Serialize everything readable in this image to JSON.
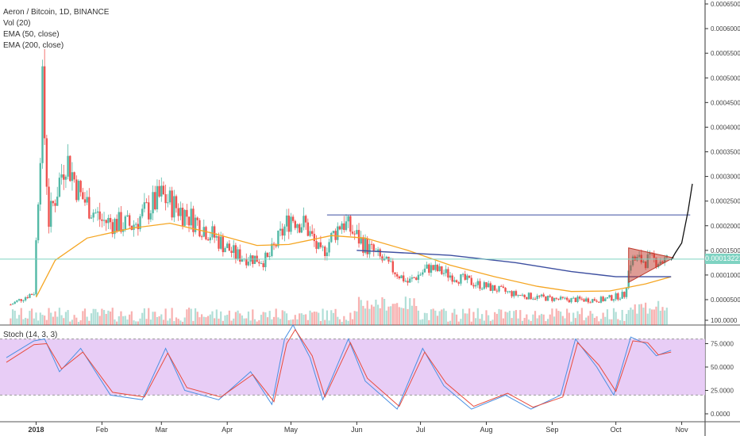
{
  "legend": {
    "symbol": "Aeron / Bitcoin, 1D, BINANCE",
    "vol": "Vol (20)",
    "ema50": "EMA (50, close)",
    "ema200": "EMA (200, close)",
    "stoch": "Stoch (14, 3, 3)"
  },
  "last_price_label": "0.00013221",
  "colors": {
    "up": "#53b9a6",
    "down": "#ef5350",
    "ema50": "#f5a623",
    "ema200": "#3d4fa0",
    "stoch_k": "#4a90e2",
    "stoch_d": "#e94b3c",
    "stoch_band": "#e6c8f5",
    "triangle": "#c0392b",
    "resistance": "#3d4fa0",
    "projection": "#111111"
  },
  "chart_data": [
    {
      "type": "line",
      "title": "Aeron / Bitcoin, 1D, BINANCE",
      "ylim": [
        0,
        0.00066
      ],
      "y_ticks": [
        "0.00065000",
        "0.00060000",
        "0.00055000",
        "0.00050000",
        "0.00045000",
        "0.00040000",
        "0.00035000",
        "0.00030000",
        "0.00025000",
        "0.00020000",
        "0.00015000",
        "0.00010000",
        "0.00005000"
      ],
      "x_ticks": [
        "2018",
        "Feb",
        "Mar",
        "Apr",
        "May",
        "Jun",
        "Jul",
        "Aug",
        "Sep",
        "Oct",
        "Nov"
      ],
      "x_range": [
        "2017-12-15",
        "2018-11-12"
      ],
      "series": [
        {
          "name": "EMA (50, close)",
          "points": [
            [
              "2018-01-01",
              5.5e-05
            ],
            [
              "2018-01-10",
              0.00013
            ],
            [
              "2018-01-25",
              0.000175
            ],
            [
              "2018-02-15",
              0.000195
            ],
            [
              "2018-03-05",
              0.000205
            ],
            [
              "2018-03-25",
              0.000185
            ],
            [
              "2018-04-15",
              0.00016
            ],
            [
              "2018-04-30",
              0.000162
            ],
            [
              "2018-05-20",
              0.00018
            ],
            [
              "2018-06-05",
              0.000175
            ],
            [
              "2018-06-25",
              0.00015
            ],
            [
              "2018-07-15",
              0.00012
            ],
            [
              "2018-08-05",
              9.65e-05
            ],
            [
              "2018-08-25",
              7.7e-05
            ],
            [
              "2018-09-10",
              6.65e-05
            ],
            [
              "2018-09-28",
              6.75e-05
            ],
            [
              "2018-10-15",
              8.2e-05
            ],
            [
              "2018-10-27",
              9.65e-05
            ]
          ]
        },
        {
          "name": "EMA (200, close)",
          "points": [
            [
              "2018-06-01",
              0.00015
            ],
            [
              "2018-07-15",
              0.00014
            ],
            [
              "2018-08-15",
              0.000125
            ],
            [
              "2018-09-10",
              0.000107
            ],
            [
              "2018-10-01",
              9.65e-05
            ],
            [
              "2018-10-27",
              9.65e-05
            ]
          ]
        }
      ],
      "candles_summary": [
        [
          "2017-12-20",
          4e-05
        ],
        [
          "2017-12-31",
          6.5e-05
        ],
        [
          "2018-01-04",
          0.00047
        ],
        [
          "2018-01-07",
          0.00021
        ],
        [
          "2018-01-15",
          0.00034
        ],
        [
          "2018-01-22",
          0.00026
        ],
        [
          "2018-02-01",
          0.00021
        ],
        [
          "2018-02-15",
          0.0002
        ],
        [
          "2018-03-01",
          0.00026
        ],
        [
          "2018-03-20",
          0.0002
        ],
        [
          "2018-04-05",
          0.00014
        ],
        [
          "2018-04-20",
          0.00013
        ],
        [
          "2018-05-01",
          0.00022
        ],
        [
          "2018-05-08",
          0.0002
        ],
        [
          "2018-05-15",
          0.00014
        ],
        [
          "2018-05-25",
          0.00021
        ],
        [
          "2018-06-05",
          0.00016
        ],
        [
          "2018-06-25",
          8.5e-05
        ],
        [
          "2018-07-05",
          0.000115
        ],
        [
          "2018-07-25",
          8.5e-05
        ],
        [
          "2018-08-15",
          6e-05
        ],
        [
          "2018-09-05",
          5e-05
        ],
        [
          "2018-09-25",
          5e-05
        ],
        [
          "2018-10-05",
          6e-05
        ],
        [
          "2018-10-08",
          0.00013
        ],
        [
          "2018-10-25",
          0.00013
        ]
      ],
      "annotations": {
        "resistance_level": 0.000222,
        "resistance_from": "2018-05-18",
        "resistance_to": "2018-11-05",
        "triangle": [
          [
            "2018-10-07",
            0.000155
          ],
          [
            "2018-10-28",
            0.000135
          ],
          [
            "2018-10-07",
            8.5e-05
          ]
        ],
        "projection": [
          [
            "2018-10-27",
            0.00013
          ],
          [
            "2018-10-29",
            0.000145
          ],
          [
            "2018-11-01",
            0.000165
          ],
          [
            "2018-11-04",
            0.00023
          ],
          [
            "2018-11-06",
            0.000285
          ]
        ],
        "last_price": 0.00013221
      }
    },
    {
      "type": "line",
      "title": "Stoch (14, 3, 3)",
      "ylim": [
        -5,
        105
      ],
      "y_ticks": [
        "100.0000",
        "75.0000",
        "50.0000",
        "25.0000",
        "0.0000"
      ],
      "band": [
        20,
        80
      ],
      "series": [
        {
          "name": "%K",
          "points": [
            [
              "2017-12-18",
              60
            ],
            [
              "2017-12-31",
              78
            ],
            [
              "2018-01-05",
              80
            ],
            [
              "2018-01-12",
              45
            ],
            [
              "2018-01-22",
              70
            ],
            [
              "2018-02-05",
              20
            ],
            [
              "2018-02-20",
              15
            ],
            [
              "2018-03-03",
              70
            ],
            [
              "2018-03-12",
              25
            ],
            [
              "2018-03-28",
              15
            ],
            [
              "2018-04-12",
              45
            ],
            [
              "2018-04-22",
              10
            ],
            [
              "2018-04-28",
              80
            ],
            [
              "2018-05-02",
              95
            ],
            [
              "2018-05-10",
              60
            ],
            [
              "2018-05-16",
              15
            ],
            [
              "2018-05-28",
              80
            ],
            [
              "2018-06-05",
              35
            ],
            [
              "2018-06-20",
              5
            ],
            [
              "2018-07-02",
              70
            ],
            [
              "2018-07-12",
              30
            ],
            [
              "2018-07-25",
              5
            ],
            [
              "2018-08-10",
              20
            ],
            [
              "2018-08-22",
              5
            ],
            [
              "2018-09-05",
              20
            ],
            [
              "2018-09-12",
              80
            ],
            [
              "2018-09-22",
              50
            ],
            [
              "2018-09-30",
              20
            ],
            [
              "2018-10-08",
              82
            ],
            [
              "2018-10-15",
              75
            ],
            [
              "2018-10-20",
              62
            ],
            [
              "2018-10-27",
              68
            ]
          ]
        },
        {
          "name": "%D",
          "points": [
            [
              "2017-12-18",
              55
            ],
            [
              "2017-12-31",
              74
            ],
            [
              "2018-01-06",
              75
            ],
            [
              "2018-01-13",
              48
            ],
            [
              "2018-01-23",
              66
            ],
            [
              "2018-02-06",
              23
            ],
            [
              "2018-02-21",
              18
            ],
            [
              "2018-03-04",
              65
            ],
            [
              "2018-03-13",
              28
            ],
            [
              "2018-03-29",
              18
            ],
            [
              "2018-04-13",
              42
            ],
            [
              "2018-04-23",
              13
            ],
            [
              "2018-04-29",
              75
            ],
            [
              "2018-05-03",
              90
            ],
            [
              "2018-05-11",
              62
            ],
            [
              "2018-05-17",
              18
            ],
            [
              "2018-05-29",
              76
            ],
            [
              "2018-06-06",
              38
            ],
            [
              "2018-06-21",
              8
            ],
            [
              "2018-07-03",
              66
            ],
            [
              "2018-07-13",
              33
            ],
            [
              "2018-07-26",
              8
            ],
            [
              "2018-08-11",
              22
            ],
            [
              "2018-08-23",
              7
            ],
            [
              "2018-09-06",
              18
            ],
            [
              "2018-09-13",
              76
            ],
            [
              "2018-09-23",
              52
            ],
            [
              "2018-10-01",
              24
            ],
            [
              "2018-10-09",
              78
            ],
            [
              "2018-10-16",
              76
            ],
            [
              "2018-10-21",
              63
            ],
            [
              "2018-10-27",
              66
            ]
          ]
        }
      ]
    }
  ]
}
